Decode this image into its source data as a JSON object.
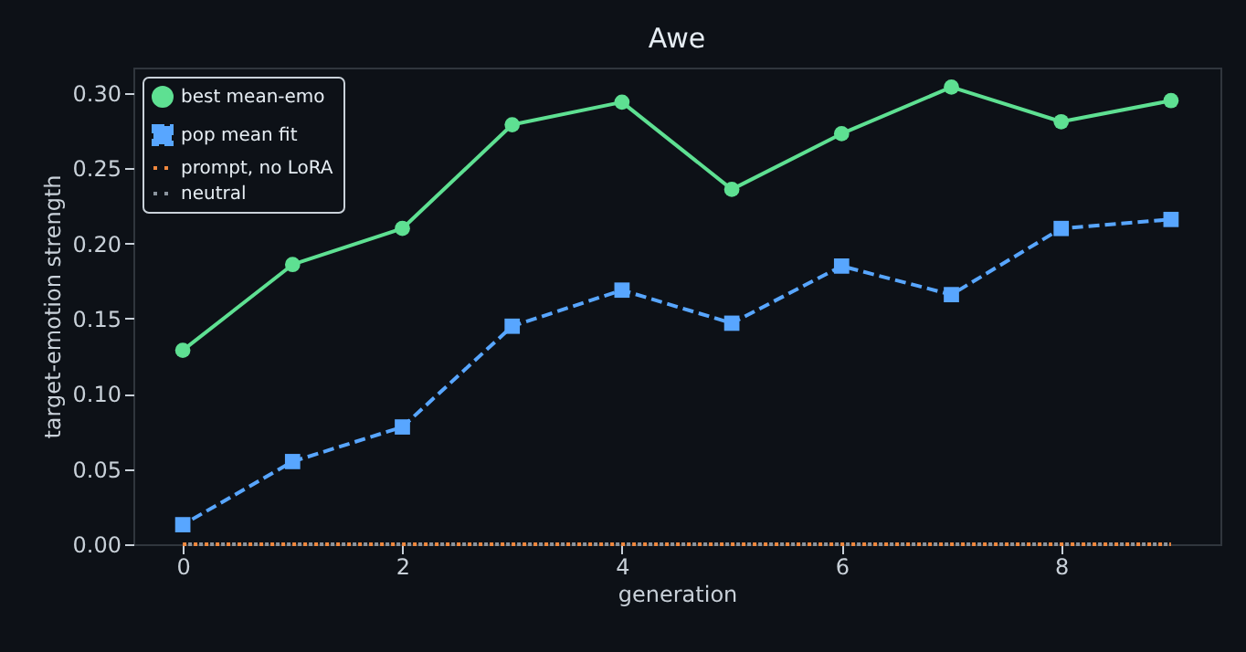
{
  "chart_data": {
    "type": "line",
    "title": "Awe",
    "xlabel": "generation",
    "ylabel": "target-emotion strength",
    "x": [
      0,
      1,
      2,
      3,
      4,
      5,
      6,
      7,
      8,
      9
    ],
    "series": [
      {
        "name": "best mean-emo",
        "color": "#5ee092",
        "marker": "circle",
        "line_style": "solid",
        "values": [
          0.129,
          0.186,
          0.21,
          0.279,
          0.294,
          0.236,
          0.273,
          0.304,
          0.281,
          0.295
        ]
      },
      {
        "name": "pop mean fit",
        "color": "#58a6ff",
        "marker": "square",
        "line_style": "dashed",
        "values": [
          0.013,
          0.055,
          0.078,
          0.145,
          0.169,
          0.147,
          0.185,
          0.166,
          0.21,
          0.216
        ]
      },
      {
        "name": "prompt, no LoRA",
        "color": "#f0883e",
        "marker": "none",
        "line_style": "dotted",
        "values": [
          0,
          0,
          0,
          0,
          0,
          0,
          0,
          0,
          0,
          0
        ]
      },
      {
        "name": "neutral",
        "color": "#8b949e",
        "marker": "none",
        "line_style": "dotted",
        "values": [
          0,
          0,
          0,
          0,
          0,
          0,
          0,
          0,
          0,
          0
        ]
      }
    ],
    "xlim": [
      -0.45,
      9.45
    ],
    "xticks": [
      0,
      2,
      4,
      6,
      8
    ],
    "ylim": [
      0,
      0.317
    ],
    "yticks": [
      {
        "value": 0,
        "label": "0.00"
      },
      0.05,
      {
        "value": 0.1,
        "label": "0.10"
      },
      0.15,
      {
        "value": 0.2,
        "label": "0.20"
      },
      0.25,
      {
        "value": 0.3,
        "label": "0.30"
      }
    ],
    "grid": false,
    "legend": "top left"
  }
}
